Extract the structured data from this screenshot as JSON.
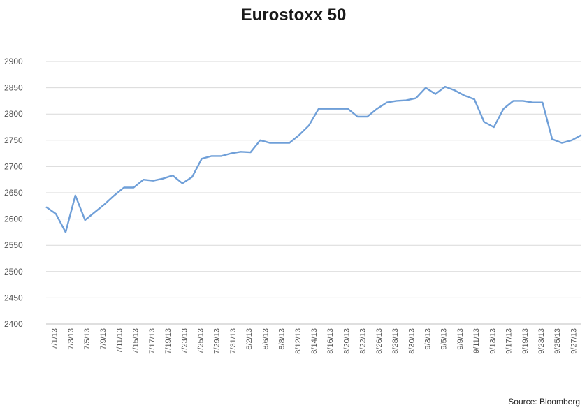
{
  "chart_data": {
    "type": "line",
    "title": "Eurostoxx 50",
    "source": "Source: Bloomberg",
    "xlabel": "",
    "ylabel": "",
    "ylim": [
      2400,
      2900
    ],
    "yticks": [
      2400,
      2450,
      2500,
      2550,
      2600,
      2650,
      2700,
      2750,
      2800,
      2850,
      2900
    ],
    "grid": "horizontal",
    "legend": "none",
    "line_color": "#6f9fd8",
    "x_tick_labels": [
      "7/1/13",
      "7/3/13",
      "7/5/13",
      "7/9/13",
      "7/11/13",
      "7/15/13",
      "7/17/13",
      "7/19/13",
      "7/23/13",
      "7/25/13",
      "7/29/13",
      "7/31/13",
      "8/2/13",
      "8/6/13",
      "8/8/13",
      "8/12/13",
      "8/14/13",
      "8/16/13",
      "8/20/13",
      "8/22/13",
      "8/26/13",
      "8/28/13",
      "8/30/13",
      "9/3/13",
      "9/5/13",
      "9/9/13",
      "9/11/13",
      "9/13/13",
      "9/17/13",
      "9/19/13",
      "9/23/13",
      "9/25/13",
      "9/27/13"
    ],
    "series": [
      {
        "values": [
          2623,
          2610,
          2575,
          2645,
          2598,
          2613,
          2628,
          2645,
          2660,
          2660,
          2675,
          2673,
          2677,
          2683,
          2668,
          2680,
          2715,
          2720,
          2720,
          2725,
          2728,
          2727,
          2750,
          2745,
          2745,
          2745,
          2760,
          2778,
          2810,
          2810,
          2810,
          2810,
          2795,
          2795,
          2810,
          2822,
          2825,
          2826,
          2830,
          2850,
          2838,
          2852,
          2845,
          2835,
          2828,
          2785,
          2775,
          2810,
          2825,
          2825,
          2822,
          2822,
          2752,
          2745,
          2750,
          2760
        ]
      }
    ]
  }
}
